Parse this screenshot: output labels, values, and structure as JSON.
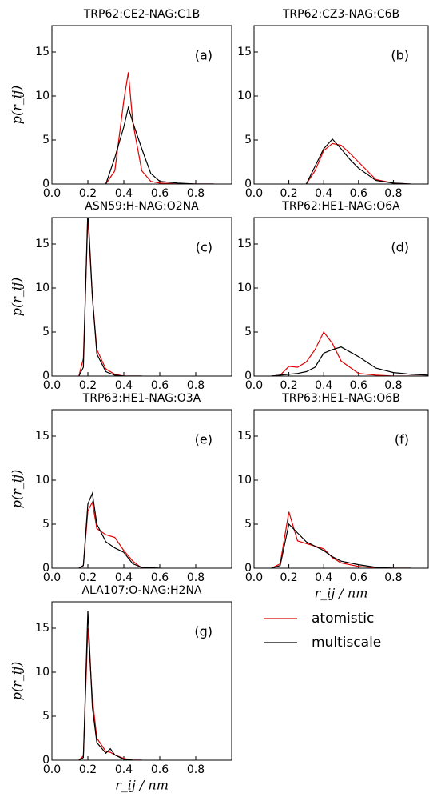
{
  "chart_data": [
    {
      "type": "line",
      "title": "TRP62:CE2-NAG:C1B",
      "annotation": "(a)",
      "ylabel": "p(r_ij)",
      "x": [
        0.3,
        0.35,
        0.4,
        0.425,
        0.45,
        0.5,
        0.55,
        0.6,
        0.7,
        0.8,
        0.9
      ],
      "series": [
        {
          "color": "#e00000",
          "values": [
            0,
            1.5,
            9.5,
            12.7,
            7,
            1.5,
            0.3,
            0.1,
            0,
            0,
            0
          ]
        },
        {
          "color": "#000000",
          "values": [
            0,
            3,
            6.5,
            8.7,
            7,
            4,
            1.2,
            0.3,
            0.1,
            0,
            0
          ]
        }
      ],
      "xlim": [
        0,
        1
      ],
      "ylim": [
        0,
        18
      ],
      "xticks": [
        {
          "value": 0,
          "label": "0.0"
        },
        0.2,
        0.4,
        0.6,
        0.8
      ],
      "yticks": [
        0,
        5,
        10,
        15
      ]
    },
    {
      "type": "line",
      "title": "TRP62:CZ3-NAG:C6B",
      "annotation": "(b)",
      "x": [
        0.3,
        0.35,
        0.4,
        0.45,
        0.5,
        0.55,
        0.6,
        0.7,
        0.8,
        0.9
      ],
      "series": [
        {
          "color": "#e00000",
          "values": [
            0,
            1.5,
            3.8,
            4.6,
            4.4,
            3.5,
            2.5,
            0.5,
            0.1,
            0
          ]
        },
        {
          "color": "#000000",
          "values": [
            0,
            2,
            4,
            5.1,
            4,
            2.8,
            1.8,
            0.4,
            0.1,
            0
          ]
        }
      ],
      "xlim": [
        0,
        1
      ],
      "ylim": [
        0,
        18
      ],
      "xticks": [
        {
          "value": 0,
          "label": "0.0"
        },
        0.2,
        0.4,
        0.6,
        0.8
      ],
      "yticks": [
        0,
        5,
        10,
        15
      ]
    },
    {
      "type": "line",
      "title": "ASN59:H-NAG:O2NA",
      "annotation": "(c)",
      "ylabel": "p(r_ij)",
      "x": [
        0.15,
        0.175,
        0.2,
        0.225,
        0.25,
        0.3,
        0.35,
        0.4,
        0.5
      ],
      "series": [
        {
          "color": "#e00000",
          "values": [
            0,
            2,
            18,
            9,
            3,
            0.8,
            0.2,
            0,
            0
          ]
        },
        {
          "color": "#000000",
          "values": [
            0,
            1,
            19,
            9,
            2.5,
            0.5,
            0.1,
            0,
            0
          ]
        }
      ],
      "xlim": [
        0,
        1
      ],
      "ylim": [
        0,
        18
      ],
      "xticks": [
        {
          "value": 0,
          "label": "0.0"
        },
        0.2,
        0.4,
        0.6,
        0.8
      ],
      "yticks": [
        0,
        5,
        10,
        15
      ]
    },
    {
      "type": "line",
      "title": "TRP62:HE1-NAG:O6A",
      "annotation": "(d)",
      "x": [
        0.1,
        0.15,
        0.2,
        0.25,
        0.3,
        0.35,
        0.4,
        0.45,
        0.5,
        0.6,
        0.7,
        0.8,
        0.9,
        1.0
      ],
      "series": [
        {
          "color": "#e00000",
          "values": [
            0,
            0.1,
            1.1,
            1.0,
            1.6,
            3.0,
            5.0,
            3.7,
            1.7,
            0.3,
            0.1,
            0,
            0,
            0
          ]
        },
        {
          "color": "#000000",
          "values": [
            0,
            0.1,
            0.2,
            0.3,
            0.5,
            1.0,
            2.6,
            3.0,
            3.3,
            2.2,
            0.9,
            0.4,
            0.2,
            0.1
          ]
        }
      ],
      "xlim": [
        0,
        1
      ],
      "ylim": [
        0,
        18
      ],
      "xticks": [
        {
          "value": 0,
          "label": "0.0"
        },
        0.2,
        0.4,
        0.6,
        0.8
      ],
      "yticks": [
        0,
        5,
        10,
        15
      ]
    },
    {
      "type": "line",
      "title": "TRP63:HE1-NAG:O3A",
      "annotation": "(e)",
      "ylabel": "p(r_ij)",
      "x": [
        0.15,
        0.175,
        0.2,
        0.225,
        0.25,
        0.3,
        0.35,
        0.4,
        0.45,
        0.5,
        0.6
      ],
      "series": [
        {
          "color": "#e00000",
          "values": [
            0,
            0.3,
            6.5,
            7.5,
            4.5,
            3.8,
            3.5,
            2,
            0.8,
            0,
            0
          ]
        },
        {
          "color": "#000000",
          "values": [
            0,
            0.3,
            7.3,
            8.5,
            5,
            3,
            2.3,
            1.8,
            0.5,
            0.1,
            0
          ]
        }
      ],
      "xlim": [
        0,
        1
      ],
      "ylim": [
        0,
        18
      ],
      "xticks": [
        {
          "value": 0,
          "label": "0.0"
        },
        0.2,
        0.4,
        0.6,
        0.8
      ],
      "yticks": [
        0,
        5,
        10,
        15
      ]
    },
    {
      "type": "line",
      "title": "TRP63:HE1-NAG:O6B",
      "annotation": "(f)",
      "xlabel": "r_ij / nm",
      "x": [
        0.1,
        0.15,
        0.2,
        0.25,
        0.3,
        0.35,
        0.4,
        0.45,
        0.5,
        0.6,
        0.7,
        0.8,
        0.9
      ],
      "series": [
        {
          "color": "#e00000",
          "values": [
            0,
            0.5,
            6.4,
            3.1,
            2.8,
            2.5,
            2.2,
            1.2,
            0.6,
            0.2,
            0.05,
            0,
            0
          ]
        },
        {
          "color": "#000000",
          "values": [
            0,
            0.3,
            5,
            4,
            3,
            2.5,
            2,
            1.3,
            0.8,
            0.4,
            0.1,
            0,
            0
          ]
        }
      ],
      "xlim": [
        0,
        1
      ],
      "ylim": [
        0,
        18
      ],
      "xticks": [
        {
          "value": 0,
          "label": "0.0"
        },
        0.2,
        0.4,
        0.6,
        0.8
      ],
      "yticks": [
        0,
        5,
        10,
        15
      ]
    },
    {
      "type": "line",
      "title": "ALA107:O-NAG:H2NA",
      "annotation": "(g)",
      "ylabel": "p(r_ij)",
      "xlabel": "r_ij / nm",
      "x": [
        0.15,
        0.175,
        0.2,
        0.225,
        0.25,
        0.3,
        0.325,
        0.35,
        0.4,
        0.45,
        0.5
      ],
      "series": [
        {
          "name": "atomistic",
          "color": "#e00000",
          "values": [
            0,
            0.5,
            15,
            7,
            2.5,
            1,
            0.9,
            0.6,
            0.2,
            0,
            0
          ]
        },
        {
          "name": "multiscale",
          "color": "#000000",
          "values": [
            0,
            0.3,
            17,
            6,
            2,
            0.8,
            1.3,
            0.6,
            0.1,
            0,
            0
          ]
        }
      ],
      "xlim": [
        0,
        1
      ],
      "ylim": [
        0,
        18
      ],
      "xticks": [
        {
          "value": 0,
          "label": "0.0"
        },
        0.2,
        0.4,
        0.6,
        0.8
      ],
      "yticks": [
        0,
        5,
        10,
        15
      ]
    }
  ]
}
